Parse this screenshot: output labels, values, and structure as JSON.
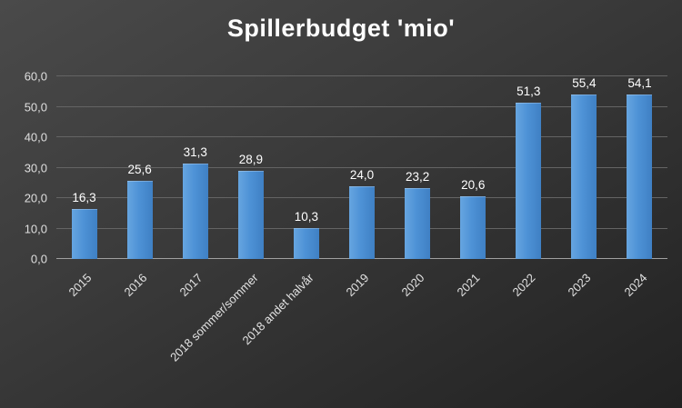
{
  "chart_data": {
    "type": "bar",
    "title": "Spillerbudget 'mio'",
    "xlabel": "",
    "ylabel": "",
    "categories": [
      "2015",
      "2016",
      "2017",
      "2018 sommer/sommer",
      "2018 andet halvår",
      "2019",
      "2020",
      "2021",
      "2022",
      "2023",
      "2024"
    ],
    "values": [
      16.3,
      25.6,
      31.3,
      28.9,
      10.3,
      24.0,
      23.2,
      20.6,
      51.3,
      55.4,
      54.1
    ],
    "value_labels": [
      "16,3",
      "25,6",
      "31,3",
      "28,9",
      "10,3",
      "24,0",
      "23,2",
      "20,6",
      "51,3",
      "55,4",
      "54,1"
    ],
    "y_ticks": [
      "0,0",
      "10,0",
      "20,0",
      "30,0",
      "40,0",
      "50,0",
      "60,0"
    ],
    "ylim": [
      0,
      60
    ],
    "grid": true,
    "legend": "none",
    "bar_color": "#4E92D6",
    "background_color": "#333333",
    "text_color": "#FFFFFF"
  }
}
